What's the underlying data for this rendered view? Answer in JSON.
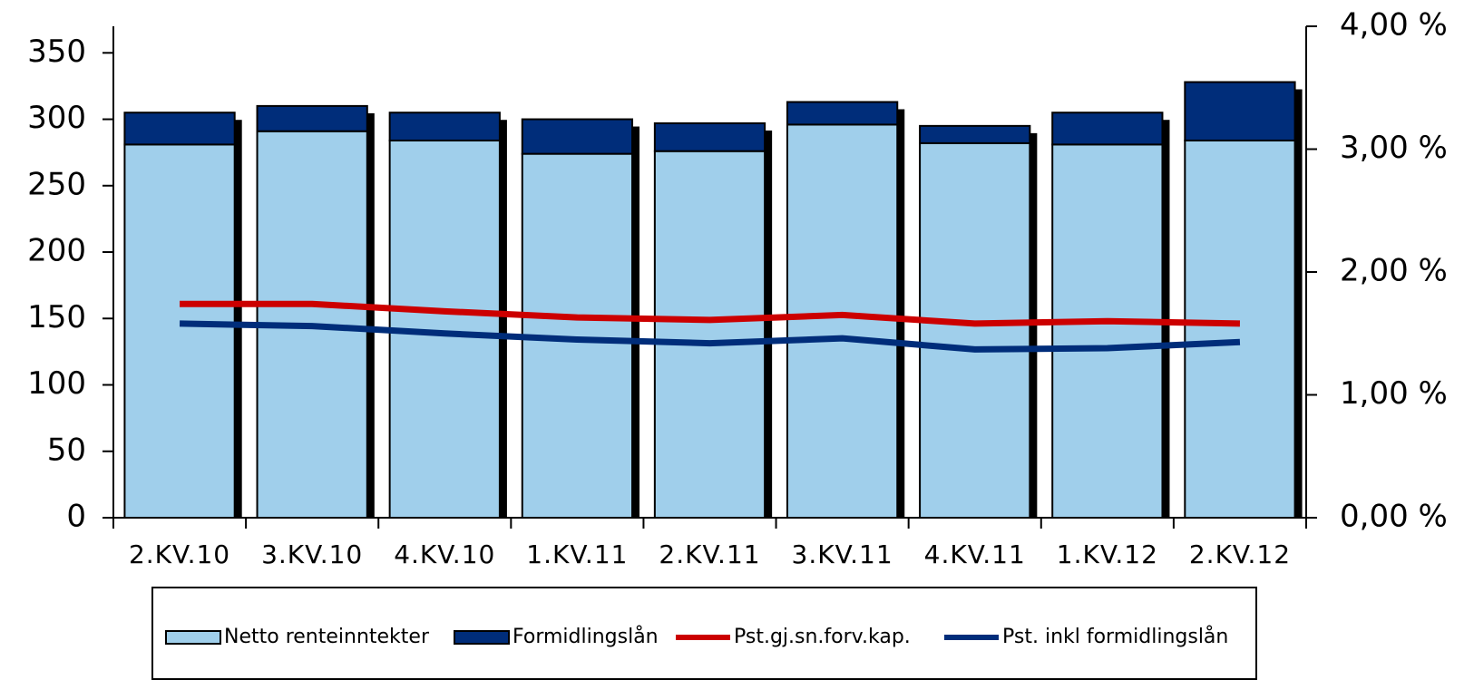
{
  "chart_data": {
    "type": "bar",
    "categories": [
      "2.KV.10",
      "3.KV.10",
      "4.KV.10",
      "1.KV.11",
      "2.KV.11",
      "3.KV.11",
      "4.KV.11",
      "1.KV.12",
      "2.KV.12"
    ],
    "series": [
      {
        "name": "Netto renteinntekter",
        "color": "#a0cfeb",
        "values": [
          281,
          291,
          284,
          274,
          276,
          296,
          282,
          281,
          284
        ]
      },
      {
        "name": "Formidlingslån",
        "color": "#002d7a",
        "values": [
          24,
          19,
          21,
          26,
          21,
          17,
          13,
          24,
          44
        ]
      },
      {
        "name": "Pst.gj.sn.forv.kap.",
        "color": "#cc0000",
        "type": "line",
        "axis": "y2",
        "values": [
          1.74,
          1.74,
          1.68,
          1.63,
          1.61,
          1.65,
          1.58,
          1.6,
          1.58
        ]
      },
      {
        "name": "Pst. inkl formidlingslån",
        "color": "#002d7a",
        "type": "line",
        "axis": "y2",
        "values": [
          1.58,
          1.56,
          1.5,
          1.45,
          1.42,
          1.46,
          1.37,
          1.38,
          1.43
        ]
      }
    ],
    "stacked": true,
    "ylim": [
      0,
      370
    ],
    "yticks": [
      0,
      50,
      100,
      150,
      200,
      250,
      300,
      350
    ],
    "y2lim": [
      0,
      4
    ],
    "y2ticks": [
      {
        "value": 0,
        "label": "0,00 %"
      },
      {
        "value": 1,
        "label": "1,00 %"
      },
      {
        "value": 2,
        "label": "2,00 %"
      },
      {
        "value": 3,
        "label": "3,00 %"
      },
      {
        "value": 4,
        "label": "4,00 %"
      }
    ]
  }
}
